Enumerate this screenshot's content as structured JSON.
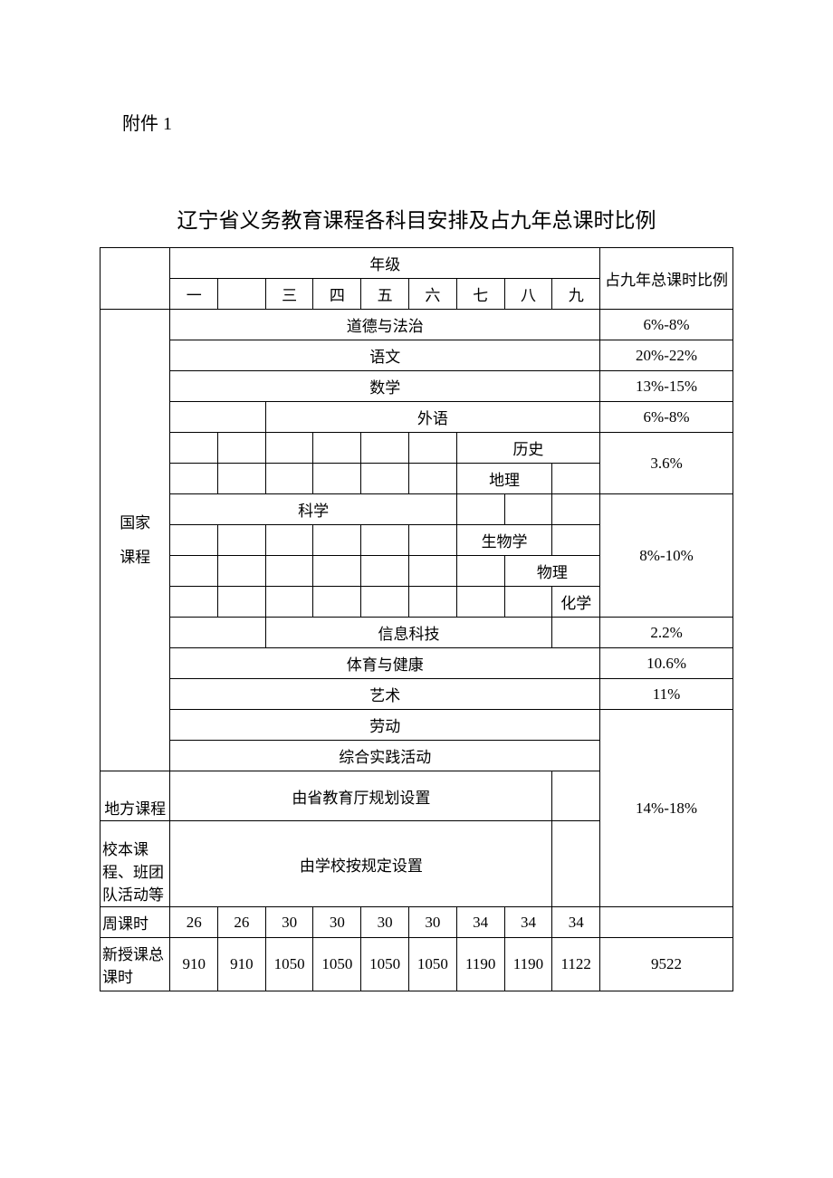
{
  "attachment": "附件 1",
  "title": "辽宁省义务教育课程各科目安排及占九年总课时比例",
  "headers": {
    "grade_group": "年级",
    "ratio": "占九年总课时比例",
    "grades": [
      "一",
      "",
      "三",
      "四",
      "五",
      "六",
      "七",
      "八",
      "九"
    ]
  },
  "categories": {
    "national": "国家\n课程",
    "local": "地方课程",
    "school": "校本课程、班团队活动等"
  },
  "subjects": {
    "morals": "道德与法治",
    "chinese": "语文",
    "math": "数学",
    "foreign": "外语",
    "history": "历史",
    "geography": "地理",
    "science": "科学",
    "biology": "生物学",
    "physics": "物理",
    "chemistry": "化学",
    "it": "信息科技",
    "pe": "体育与健康",
    "art": "艺术",
    "labor": "劳动",
    "practice": "综合实践活动"
  },
  "notes": {
    "local_plan": "由省教育厅规划设置",
    "school_plan": "由学校按规定设置"
  },
  "ratios": {
    "morals": "6%-8%",
    "chinese": "20%-22%",
    "math": "13%-15%",
    "foreign": "6%-8%",
    "history_geo": "3.6%",
    "science_group": "8%-10%",
    "it": "2.2%",
    "pe": "10.6%",
    "art": "11%",
    "other": "14%-18%"
  },
  "rows": {
    "weekly_label": "周课时",
    "weekly": [
      "26",
      "26",
      "30",
      "30",
      "30",
      "30",
      "34",
      "34",
      "34"
    ],
    "total_label": "新授课总课时",
    "total": [
      "910",
      "910",
      "1050",
      "1050",
      "1050",
      "1050",
      "1190",
      "1190",
      "1122"
    ],
    "total_sum": "9522"
  },
  "style": {
    "text_color": "#000000",
    "border_color": "#000000",
    "background": "#ffffff",
    "title_fontsize": 23,
    "body_fontsize": 17
  }
}
